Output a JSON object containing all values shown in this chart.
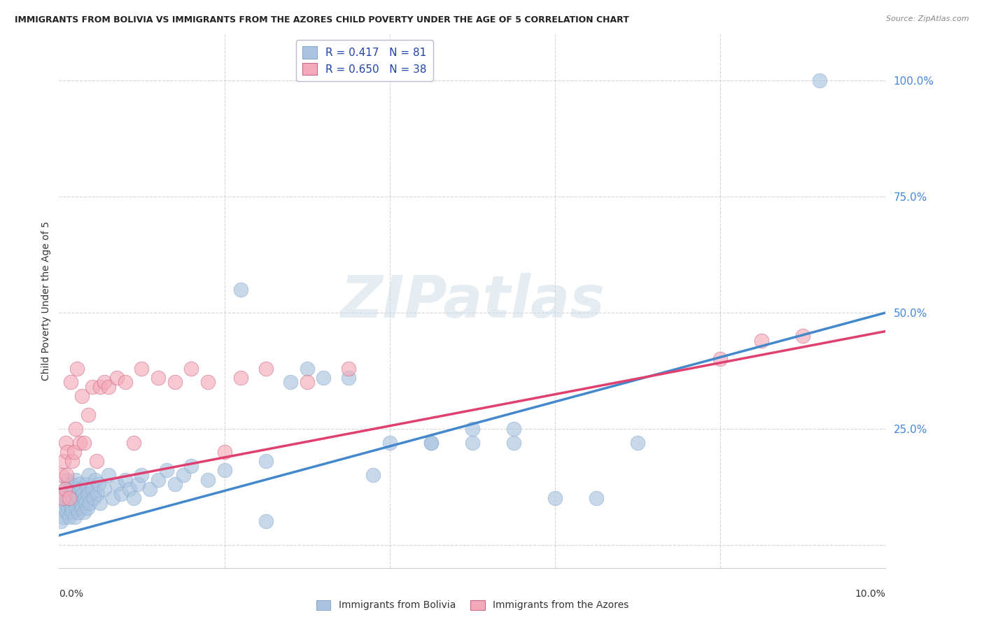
{
  "title": "IMMIGRANTS FROM BOLIVIA VS IMMIGRANTS FROM THE AZORES CHILD POVERTY UNDER THE AGE OF 5 CORRELATION CHART",
  "source": "Source: ZipAtlas.com",
  "ylabel": "Child Poverty Under the Age of 5",
  "yticks": [
    0.0,
    0.25,
    0.5,
    0.75,
    1.0
  ],
  "ytick_labels": [
    "",
    "25.0%",
    "50.0%",
    "75.0%",
    "100.0%"
  ],
  "xlim": [
    0.0,
    0.1
  ],
  "ylim": [
    -0.05,
    1.1
  ],
  "bolivia_R": 0.417,
  "bolivia_N": 81,
  "azores_R": 0.65,
  "azores_N": 38,
  "bolivia_color": "#aac4e0",
  "azores_color": "#f4aaba",
  "bolivia_line_color": "#4488cc",
  "azores_line_color": "#e04070",
  "bolivia_scatter_x": [
    0.0002,
    0.0004,
    0.0005,
    0.0006,
    0.0007,
    0.0008,
    0.0009,
    0.001,
    0.001,
    0.0011,
    0.0012,
    0.0013,
    0.0014,
    0.0015,
    0.0015,
    0.0016,
    0.0017,
    0.0018,
    0.0019,
    0.002,
    0.002,
    0.0021,
    0.0022,
    0.0023,
    0.0024,
    0.0025,
    0.0026,
    0.0027,
    0.0028,
    0.0029,
    0.003,
    0.0031,
    0.0032,
    0.0033,
    0.0034,
    0.0035,
    0.0036,
    0.0037,
    0.004,
    0.0042,
    0.0044,
    0.0046,
    0.0048,
    0.005,
    0.0055,
    0.006,
    0.0065,
    0.007,
    0.0075,
    0.008,
    0.0085,
    0.009,
    0.0095,
    0.01,
    0.011,
    0.012,
    0.013,
    0.014,
    0.015,
    0.016,
    0.018,
    0.02,
    0.022,
    0.025,
    0.028,
    0.03,
    0.032,
    0.035,
    0.038,
    0.04,
    0.045,
    0.05,
    0.055,
    0.06,
    0.065,
    0.07,
    0.025,
    0.045,
    0.05,
    0.055,
    0.092
  ],
  "bolivia_scatter_y": [
    0.05,
    0.08,
    0.1,
    0.06,
    0.09,
    0.12,
    0.07,
    0.1,
    0.14,
    0.08,
    0.06,
    0.09,
    0.11,
    0.08,
    0.13,
    0.07,
    0.1,
    0.12,
    0.06,
    0.09,
    0.14,
    0.08,
    0.11,
    0.07,
    0.1,
    0.13,
    0.09,
    0.12,
    0.08,
    0.11,
    0.07,
    0.1,
    0.09,
    0.13,
    0.08,
    0.11,
    0.15,
    0.09,
    0.12,
    0.1,
    0.14,
    0.11,
    0.13,
    0.09,
    0.12,
    0.15,
    0.1,
    0.13,
    0.11,
    0.14,
    0.12,
    0.1,
    0.13,
    0.15,
    0.12,
    0.14,
    0.16,
    0.13,
    0.15,
    0.17,
    0.14,
    0.16,
    0.55,
    0.18,
    0.35,
    0.38,
    0.36,
    0.36,
    0.15,
    0.22,
    0.22,
    0.25,
    0.22,
    0.1,
    0.1,
    0.22,
    0.05,
    0.22,
    0.22,
    0.25,
    1.0
  ],
  "azores_scatter_x": [
    0.0003,
    0.0005,
    0.0006,
    0.0007,
    0.0008,
    0.0009,
    0.001,
    0.0012,
    0.0014,
    0.0016,
    0.0018,
    0.002,
    0.0022,
    0.0025,
    0.0028,
    0.003,
    0.0035,
    0.004,
    0.0045,
    0.005,
    0.0055,
    0.006,
    0.007,
    0.008,
    0.009,
    0.01,
    0.012,
    0.014,
    0.016,
    0.018,
    0.02,
    0.022,
    0.025,
    0.03,
    0.035,
    0.08,
    0.085,
    0.09
  ],
  "azores_scatter_y": [
    0.15,
    0.1,
    0.18,
    0.12,
    0.22,
    0.15,
    0.2,
    0.1,
    0.35,
    0.18,
    0.2,
    0.25,
    0.38,
    0.22,
    0.32,
    0.22,
    0.28,
    0.34,
    0.18,
    0.34,
    0.35,
    0.34,
    0.36,
    0.35,
    0.22,
    0.38,
    0.36,
    0.35,
    0.38,
    0.35,
    0.2,
    0.36,
    0.38,
    0.35,
    0.38,
    0.4,
    0.44,
    0.45
  ],
  "bolivia_trendline_x": [
    0.0,
    0.1
  ],
  "bolivia_trendline_y": [
    0.02,
    0.5
  ],
  "azores_trendline_x": [
    0.0,
    0.1
  ],
  "azores_trendline_y": [
    0.12,
    0.46
  ]
}
